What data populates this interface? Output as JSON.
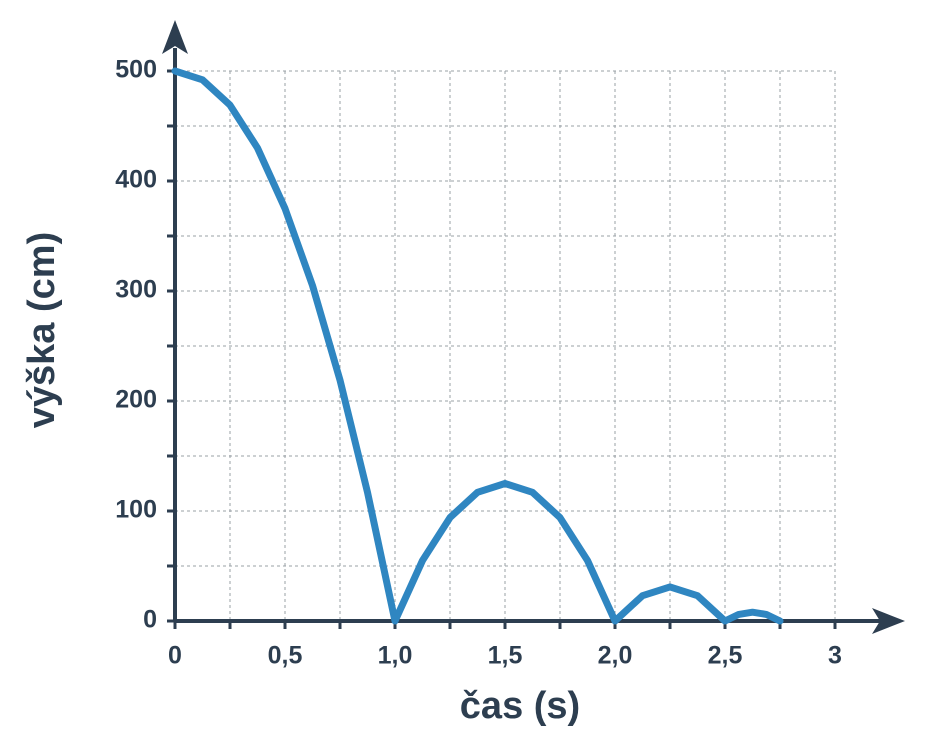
{
  "chart_data": {
    "type": "line",
    "x_label": "čas (s)",
    "y_label": "výška (cm)",
    "x": [
      0,
      0.125,
      0.25,
      0.375,
      0.5,
      0.625,
      0.75,
      0.875,
      1,
      1.125,
      1.25,
      1.375,
      1.5,
      1.625,
      1.75,
      1.875,
      2,
      2.125,
      2.25,
      2.375,
      2.5,
      2.5625,
      2.625,
      2.6875,
      2.75
    ],
    "series": [
      {
        "color": "#2f86c1",
        "values": [
          500,
          492,
          469,
          430,
          375,
          305,
          219,
          117,
          0,
          55,
          94,
          117,
          125,
          117,
          94,
          55,
          0,
          23,
          31,
          23,
          0,
          6,
          8,
          6,
          0
        ]
      }
    ],
    "xlim": [
      0,
      3
    ],
    "ylim": [
      0,
      500
    ],
    "xticks": [
      0,
      {
        "value": 0.5,
        "label": "0,5"
      },
      {
        "value": 1,
        "label": "1,0"
      },
      {
        "value": 1.5,
        "label": "1,5"
      },
      {
        "value": 2,
        "label": "2,0"
      },
      {
        "value": 2.5,
        "label": "2,5"
      },
      3
    ],
    "yticks": [
      0,
      100,
      200,
      300,
      400,
      500
    ],
    "xminorticks": [
      0.25,
      0.75,
      1.25,
      1.75,
      2.25,
      2.75
    ],
    "yminorticks": [
      50,
      150,
      250,
      350,
      450
    ],
    "grid": true
  }
}
